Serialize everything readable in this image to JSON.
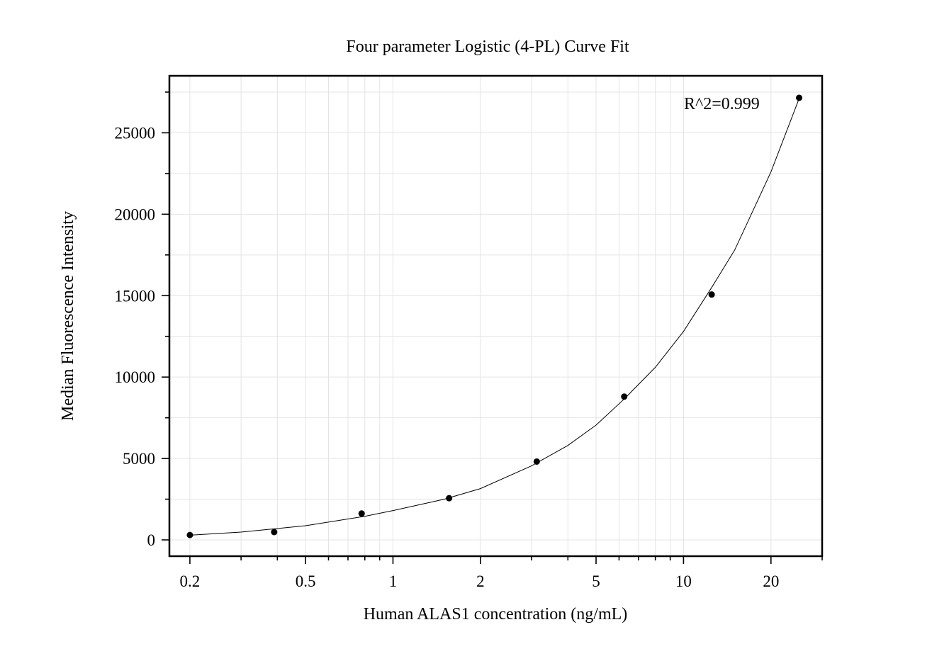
{
  "chart_data": {
    "type": "scatter",
    "title": "Four parameter Logistic (4-PL) Curve Fit",
    "xlabel": "Human ALAS1 concentration (ng/mL)",
    "ylabel": "Median Fluorescence Intensity",
    "x_scale": "log",
    "xlim": [
      0.17,
      30
    ],
    "ylim": [
      -1000,
      28500
    ],
    "x_ticks": [
      0.2,
      0.5,
      1,
      2,
      5,
      10,
      20
    ],
    "x_tick_labels": [
      "0.2",
      "0.5",
      "1",
      "2",
      "5",
      "10",
      "20"
    ],
    "y_ticks": [
      0,
      5000,
      10000,
      15000,
      20000,
      25000
    ],
    "y_tick_labels": [
      "0",
      "5000",
      "10000",
      "15000",
      "20000",
      "25000"
    ],
    "grid": true,
    "annotation": "R^2=0.999",
    "series": [
      {
        "type": "scatter",
        "x": [
          0.2,
          0.39,
          0.78,
          1.56,
          3.125,
          6.25,
          12.5,
          25
        ],
        "y": [
          300,
          480,
          1620,
          2560,
          4810,
          8800,
          15070,
          27150
        ]
      },
      {
        "type": "line",
        "x": [
          0.2,
          0.3,
          0.5,
          0.8,
          1,
          1.5,
          2,
          3,
          4,
          5,
          6.25,
          8,
          10,
          12.5,
          15,
          20,
          25
        ],
        "y": [
          290,
          480,
          870,
          1450,
          1800,
          2500,
          3150,
          4550,
          5800,
          7050,
          8650,
          10600,
          12800,
          15500,
          17800,
          22600,
          27100
        ]
      }
    ]
  }
}
